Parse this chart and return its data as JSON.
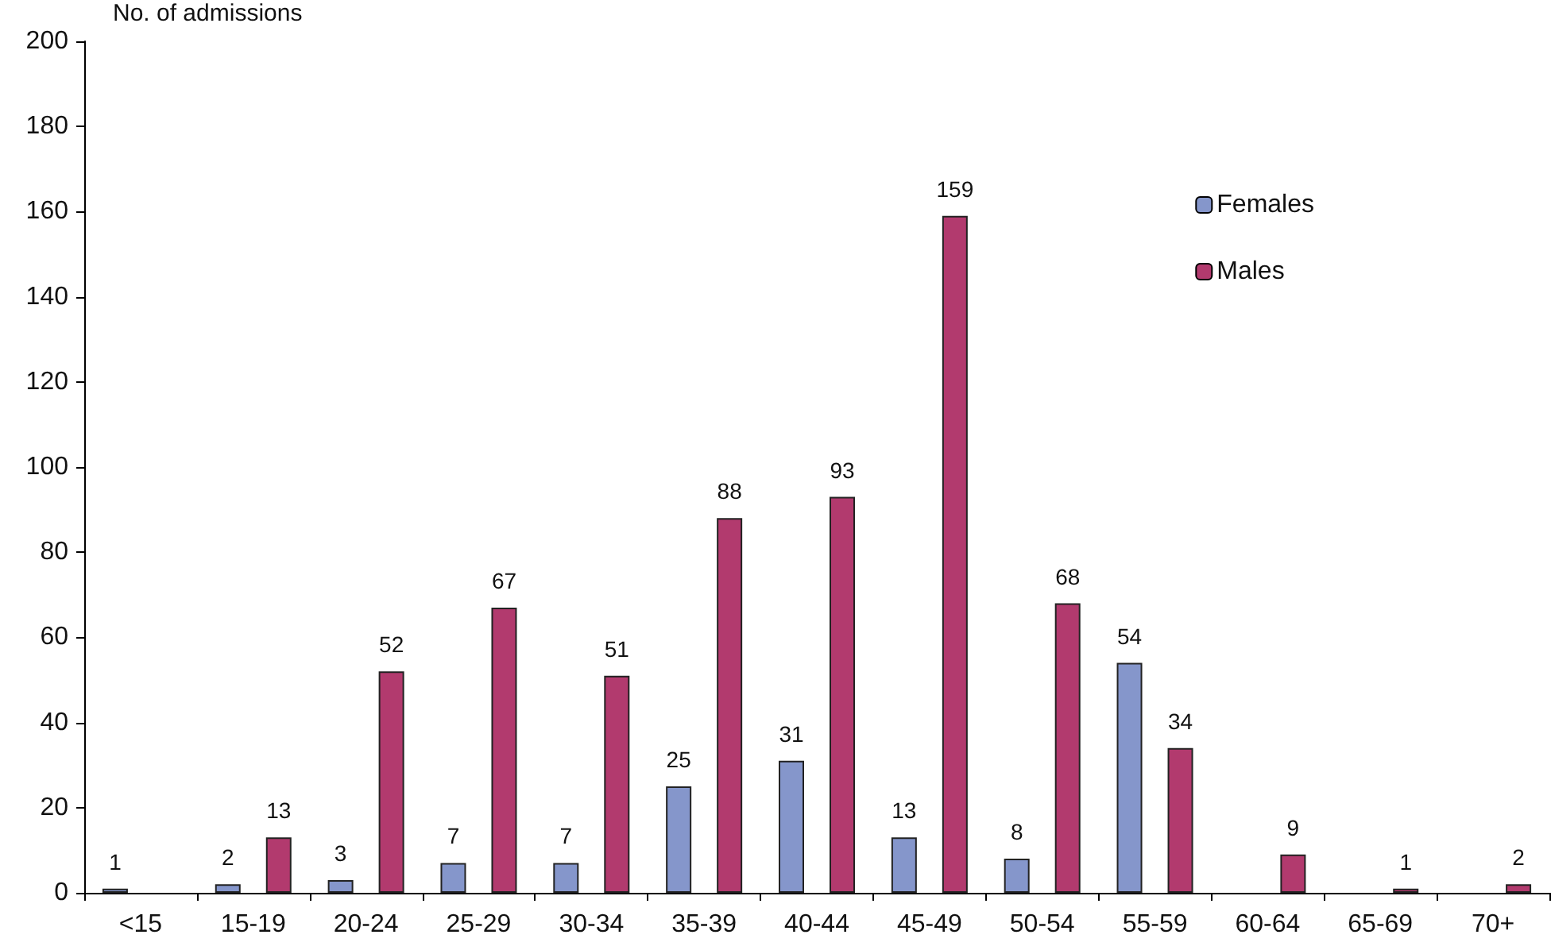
{
  "chart_data": {
    "type": "bar",
    "ylabel": "No. of admissions",
    "categories": [
      "<15",
      "15-19",
      "20-24",
      "25-29",
      "30-34",
      "35-39",
      "40-44",
      "45-49",
      "50-54",
      "55-59",
      "60-64",
      "65-69",
      "70+"
    ],
    "series": [
      {
        "name": "Females",
        "color": "#8596cb",
        "values": [
          1,
          2,
          3,
          7,
          7,
          25,
          31,
          13,
          8,
          54,
          null,
          null,
          null
        ]
      },
      {
        "name": "Males",
        "color": "#b23a6e",
        "values": [
          null,
          13,
          52,
          67,
          51,
          88,
          93,
          159,
          68,
          34,
          9,
          1,
          2
        ]
      }
    ],
    "ylim": [
      0,
      200
    ],
    "yticks": [
      0,
      20,
      40,
      60,
      80,
      100,
      120,
      140,
      160,
      180,
      200
    ],
    "legend": "top right",
    "data_labels": true
  }
}
